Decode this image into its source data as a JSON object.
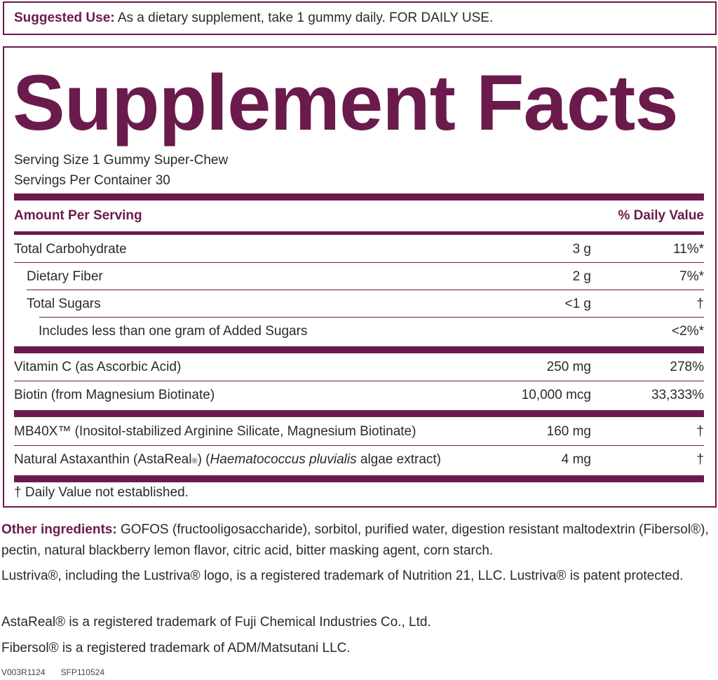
{
  "suggested_use": {
    "label": "Suggested Use:",
    "text": " As a dietary supplement, take 1 gummy daily. FOR DAILY USE."
  },
  "facts": {
    "title": "Supplement Facts",
    "serving_size": "Serving Size 1 Gummy Super-Chew",
    "servings_per_container": "Servings Per Container 30",
    "header": {
      "amount": "Amount Per Serving",
      "daily_value": "% Daily Value"
    },
    "rows": [
      {
        "name": "Total Carbohydrate",
        "amount": "3 g",
        "dv": "11%*"
      },
      {
        "name": "Dietary Fiber",
        "amount": "2 g",
        "dv": "7%*"
      },
      {
        "name": "Total Sugars",
        "amount": "<1 g",
        "dv": "†"
      },
      {
        "name": "Includes less than one gram of Added Sugars",
        "amount": "",
        "dv": "<2%*"
      },
      {
        "name": "Vitamin C (as Ascorbic Acid)",
        "amount": "250 mg",
        "dv": "278%"
      },
      {
        "name": "Biotin (from Magnesium Biotinate)",
        "amount": "10,000 mcg",
        "dv": "33,333%"
      },
      {
        "name": "MB40X™ (Inositol-stabilized Arginine Silicate, Magnesium Biotinate)",
        "amount": "160 mg",
        "dv": "†"
      },
      {
        "name_prefix": "Natural Astaxanthin (AstaReal",
        "name_reg": "®",
        "name_mid": ") (",
        "name_italic": "Haematococcus pluvialis",
        "name_suffix": " algae extract)",
        "amount": "4 mg",
        "dv": "†"
      }
    ],
    "footnote": "† Daily Value not established."
  },
  "other_ingredients": {
    "label": "Other ingredients:",
    "text": " GOFOS (fructooligosaccharide), sorbitol, purified water, digestion resistant maltodextrin (Fibersol®), pectin, natural blackberry lemon flavor, citric acid, bitter masking agent, corn starch."
  },
  "trademarks": [
    "Lustriva®, including the Lustriva® logo, is a registered trademark of Nutrition 21, LLC. Lustriva® is patent protected.",
    "AstaReal® is a registered trademark of Fuji Chemical Industries Co., Ltd.",
    "Fibersol® is a registered trademark of ADM/Matsutani LLC."
  ],
  "codes": [
    "V003R1124",
    "SFP110524"
  ],
  "colors": {
    "accent": "#6b1a4c",
    "text": "#2a2a2a"
  }
}
